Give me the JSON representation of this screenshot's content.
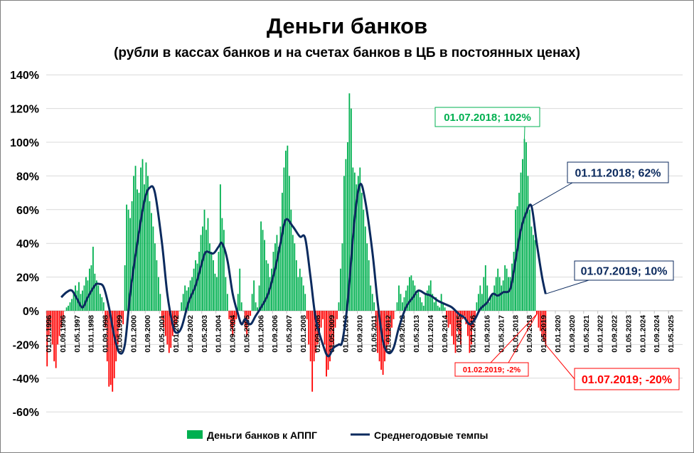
{
  "chart_data": {
    "type": "bar+line",
    "title": "Деньги банков",
    "subtitle": "(рубли в кассах банков и на счетах банков в ЦБ в постоянных ценах)",
    "ylim": [
      -60,
      140
    ],
    "yticks": [
      140,
      120,
      100,
      80,
      60,
      40,
      20,
      0,
      -20,
      -40,
      -60
    ],
    "ytick_labels": [
      "140%",
      "120%",
      "100%",
      "80%",
      "60%",
      "40%",
      "20%",
      "0%",
      "-20%",
      "-40%",
      "-60%"
    ],
    "x_start": "1996-01",
    "x_months_total": 360,
    "xtick_labels": [
      "01.01.1996",
      "01.09.1996",
      "01.05.1997",
      "01.01.1998",
      "01.09.1998",
      "01.05.1999",
      "01.01.2000",
      "01.09.2000",
      "01.05.2001",
      "01.01.2002",
      "01.09.2002",
      "01.05.2003",
      "01.01.2004",
      "01.09.2004",
      "01.05.2005",
      "01.01.2006",
      "01.09.2006",
      "01.05.2007",
      "01.01.2008",
      "01.09.2008",
      "01.05.2009",
      "01.01.2010",
      "01.09.2010",
      "01.05.2011",
      "01.01.2012",
      "01.09.2012",
      "01.05.2013",
      "01.01.2014",
      "01.09.2014",
      "01.05.2015",
      "01.01.2016",
      "01.09.2016",
      "01.05.2017",
      "01.01.2018",
      "01.09.2018",
      "01.05.2019",
      "01.01.2020",
      "01.09.2020",
      "01.05.2021",
      "01.01.2022",
      "01.09.2022",
      "01.05.2023",
      "01.01.2024",
      "01.09.2024",
      "01.05.2025"
    ],
    "series": [
      {
        "name": "Деньги банков к АППГ",
        "kind": "bar",
        "color_pos": "#00b050",
        "color_neg": "#ff0000",
        "values": [
          -33,
          -15,
          -10,
          -20,
          -30,
          -34,
          -20,
          -15,
          -10,
          -5,
          0,
          2,
          3,
          5,
          7,
          10,
          15,
          12,
          17,
          10,
          12,
          15,
          20,
          18,
          25,
          27,
          38,
          22,
          18,
          15,
          10,
          8,
          5,
          -10,
          -30,
          -45,
          -44,
          -48,
          -40,
          -30,
          -20,
          -10,
          -5,
          -8,
          27,
          63,
          60,
          55,
          65,
          80,
          86,
          72,
          70,
          85,
          90,
          75,
          88,
          80,
          65,
          58,
          50,
          40,
          30,
          20,
          10,
          -5,
          -10,
          -15,
          -20,
          -25,
          -22,
          -15,
          -10,
          -8,
          -5,
          0,
          5,
          10,
          15,
          12,
          14,
          18,
          20,
          25,
          30,
          28,
          35,
          45,
          50,
          60,
          48,
          55,
          40,
          35,
          30,
          22,
          20,
          35,
          75,
          55,
          48,
          20,
          10,
          -5,
          -10,
          -15,
          -8,
          -5,
          10,
          25,
          5,
          0,
          -10,
          -15,
          -5,
          -3,
          10,
          18,
          5,
          2,
          15,
          53,
          48,
          42,
          30,
          28,
          20,
          25,
          35,
          40,
          45,
          38,
          50,
          70,
          85,
          95,
          98,
          80,
          60,
          45,
          40,
          30,
          20,
          25,
          20,
          15,
          10,
          -5,
          -20,
          -30,
          -48,
          -30,
          -25,
          -20,
          -15,
          -10,
          -5,
          -20,
          -39,
          -35,
          -30,
          -25,
          -20,
          -10,
          -5,
          5,
          25,
          40,
          80,
          90,
          100,
          129,
          120,
          85,
          82,
          75,
          80,
          85,
          70,
          60,
          50,
          40,
          30,
          15,
          10,
          5,
          -10,
          -25,
          -30,
          -35,
          -38,
          -30,
          -25,
          -20,
          -15,
          -10,
          -5,
          0,
          5,
          15,
          10,
          5,
          8,
          12,
          15,
          20,
          21,
          18,
          15,
          10,
          12,
          8,
          5,
          3,
          10,
          12,
          15,
          18,
          10,
          5,
          8,
          3,
          2,
          10,
          5,
          2,
          -5,
          -10,
          -8,
          -15,
          -20,
          -25,
          -10,
          -15,
          -20,
          -5,
          -3,
          -8,
          -15,
          -25,
          -20,
          -10,
          -5,
          5,
          10,
          15,
          10,
          20,
          27,
          15,
          5,
          8,
          10,
          15,
          20,
          25,
          20,
          15,
          18,
          27,
          25,
          20,
          20,
          28,
          35,
          60,
          62,
          70,
          82,
          90,
          102,
          100,
          80,
          60,
          50,
          45,
          42,
          -2,
          -10,
          -12,
          -15,
          -18,
          -20
        ]
      },
      {
        "name": "Среднегодовые темпы",
        "kind": "line",
        "color": "#0b2a5e",
        "points": [
          [
            "1996-09",
            8
          ],
          [
            "1996-12",
            11
          ],
          [
            "1997-03",
            12
          ],
          [
            "1997-06",
            7
          ],
          [
            "1997-09",
            2
          ],
          [
            "1997-12",
            8
          ],
          [
            "1998-04",
            15
          ],
          [
            "1998-06",
            16
          ],
          [
            "1998-09",
            14
          ],
          [
            "1998-12",
            2
          ],
          [
            "1999-03",
            -15
          ],
          [
            "1999-06",
            -25
          ],
          [
            "1999-09",
            -20
          ],
          [
            "1999-12",
            10
          ],
          [
            "2000-04",
            40
          ],
          [
            "2000-08",
            65
          ],
          [
            "2000-11",
            73
          ],
          [
            "2001-02",
            70
          ],
          [
            "2001-06",
            40
          ],
          [
            "2001-09",
            10
          ],
          [
            "2001-12",
            -8
          ],
          [
            "2002-02",
            -13
          ],
          [
            "2002-05",
            -10
          ],
          [
            "2002-09",
            5
          ],
          [
            "2003-01",
            15
          ],
          [
            "2003-05",
            30
          ],
          [
            "2003-07",
            35
          ],
          [
            "2003-11",
            34
          ],
          [
            "2004-02",
            38
          ],
          [
            "2004-04",
            40
          ],
          [
            "2004-07",
            30
          ],
          [
            "2004-10",
            10
          ],
          [
            "2005-01",
            -2
          ],
          [
            "2005-03",
            -8
          ],
          [
            "2005-05",
            -5
          ],
          [
            "2005-08",
            -8
          ],
          [
            "2005-11",
            -3
          ],
          [
            "2006-02",
            2
          ],
          [
            "2006-06",
            10
          ],
          [
            "2006-10",
            25
          ],
          [
            "2007-01",
            40
          ],
          [
            "2007-04",
            54
          ],
          [
            "2007-08",
            50
          ],
          [
            "2007-12",
            44
          ],
          [
            "2008-03",
            43
          ],
          [
            "2008-06",
            20
          ],
          [
            "2008-09",
            -5
          ],
          [
            "2009-01",
            -20
          ],
          [
            "2009-04",
            -27
          ],
          [
            "2009-07",
            -22
          ],
          [
            "2009-10",
            -20
          ],
          [
            "2009-12",
            -18
          ],
          [
            "2010-03",
            5
          ],
          [
            "2010-07",
            55
          ],
          [
            "2010-10",
            75
          ],
          [
            "2011-01",
            65
          ],
          [
            "2011-05",
            35
          ],
          [
            "2011-08",
            5
          ],
          [
            "2011-11",
            -18
          ],
          [
            "2012-02",
            -25
          ],
          [
            "2012-05",
            -22
          ],
          [
            "2012-08",
            -10
          ],
          [
            "2012-12",
            2
          ],
          [
            "2013-04",
            8
          ],
          [
            "2013-07",
            12
          ],
          [
            "2013-11",
            10
          ],
          [
            "2014-02",
            9
          ],
          [
            "2014-06",
            6
          ],
          [
            "2014-10",
            4
          ],
          [
            "2015-02",
            2
          ],
          [
            "2015-06",
            -2
          ],
          [
            "2015-09",
            -4
          ],
          [
            "2015-12",
            -8
          ],
          [
            "2016-03",
            -5
          ],
          [
            "2016-06",
            1
          ],
          [
            "2016-10",
            5
          ],
          [
            "2017-01",
            10
          ],
          [
            "2017-04",
            9
          ],
          [
            "2017-07",
            11
          ],
          [
            "2017-11",
            13
          ],
          [
            "2018-02",
            30
          ],
          [
            "2018-05",
            48
          ],
          [
            "2018-08",
            58
          ],
          [
            "2018-11",
            62
          ],
          [
            "2019-02",
            40
          ],
          [
            "2019-05",
            20
          ],
          [
            "2019-07",
            10
          ]
        ]
      }
    ],
    "annotations": [
      {
        "text": "01.07.2018; 102%",
        "color": "#00b050",
        "date": "2018-07",
        "value": 102
      },
      {
        "text": "01.11.2018; 62%",
        "color": "#0b2a5e",
        "date": "2018-11",
        "value": 62
      },
      {
        "text": "01.07.2019; 10%",
        "color": "#0b2a5e",
        "date": "2019-07",
        "value": 10
      },
      {
        "text": "01.02.2019; -2%",
        "color": "#ff0000",
        "date": "2019-02",
        "value": -2
      },
      {
        "text": "01.07.2019; -20%",
        "color": "#ff0000",
        "date": "2019-07",
        "value": -20
      }
    ],
    "legend": {
      "position": "bottom",
      "items": [
        "Деньги банков к АППГ",
        "Среднегодовые темпы"
      ]
    },
    "grid": true
  }
}
